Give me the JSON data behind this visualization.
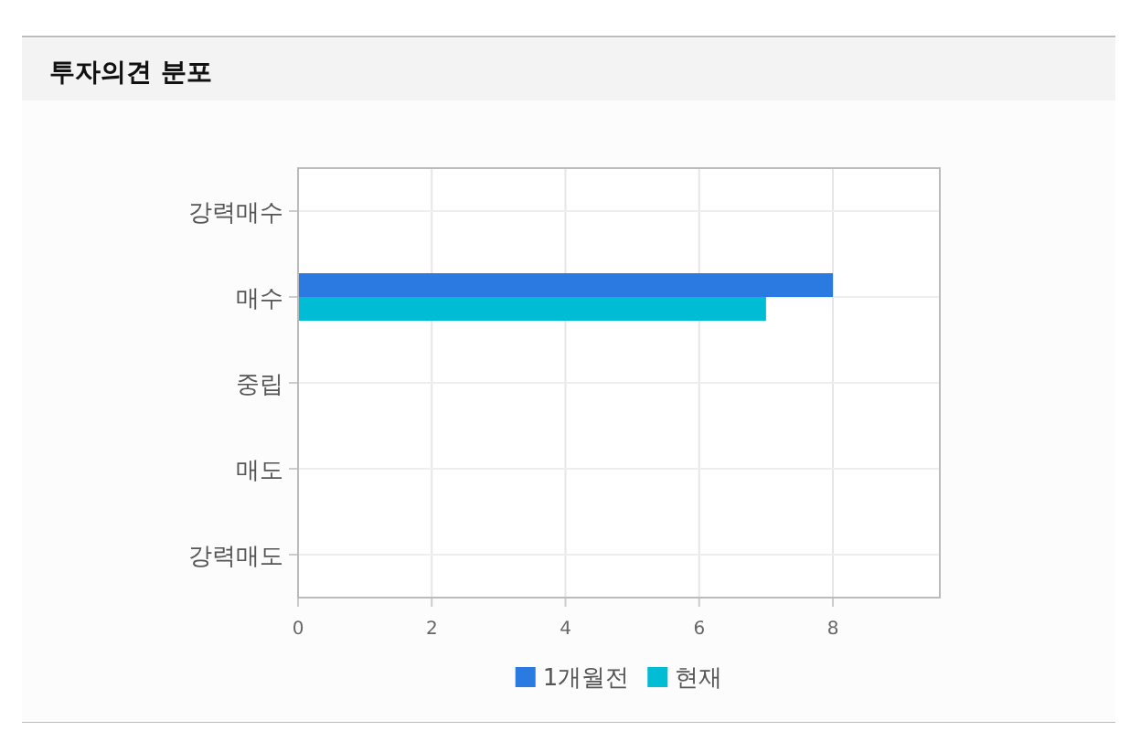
{
  "chart_data": {
    "type": "bar",
    "orientation": "horizontal",
    "title": "투자의견 분포",
    "categories": [
      "강력매수",
      "매수",
      "중립",
      "매도",
      "강력매도"
    ],
    "series": [
      {
        "name": "1개월전",
        "color": "#2a7ae2",
        "values": [
          0,
          8,
          0,
          0,
          0
        ]
      },
      {
        "name": "현재",
        "color": "#00bcd4",
        "values": [
          0,
          7,
          0,
          0,
          0
        ]
      }
    ],
    "xlim": [
      0,
      9.6
    ],
    "xticks": [
      0,
      2,
      4,
      6,
      8
    ],
    "grid": true,
    "legend": "bottom"
  }
}
